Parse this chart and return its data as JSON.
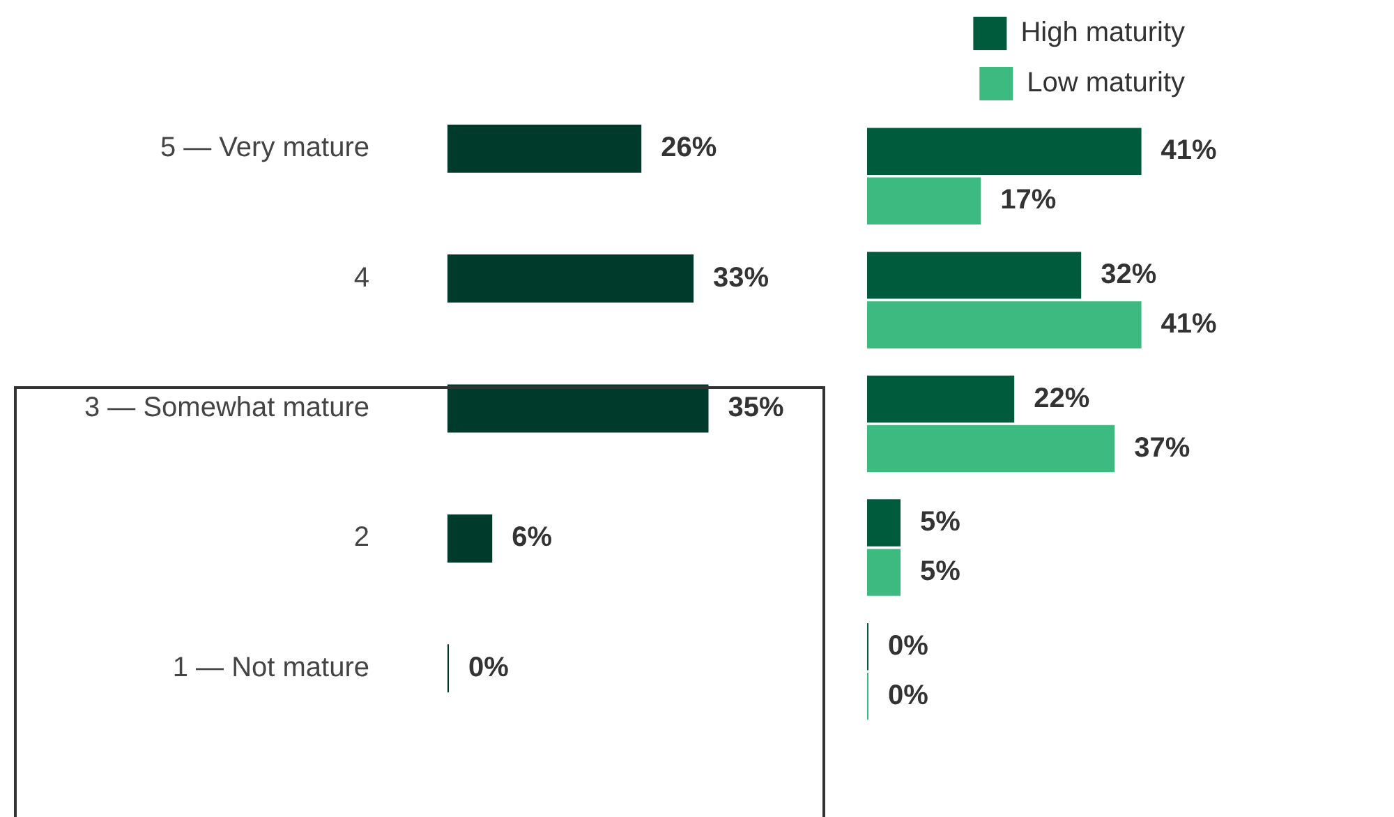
{
  "chart_data": [
    {
      "type": "bar",
      "orientation": "horizontal",
      "categories": [
        "5 — Very mature",
        "4",
        "3 — Somewhat mature",
        "2",
        "1 — Not mature"
      ],
      "values": [
        26,
        33,
        35,
        6,
        0
      ],
      "color": "#003a2b",
      "value_labels": [
        "26%",
        "33%",
        "35%",
        "6%",
        "0%"
      ]
    },
    {
      "type": "bar",
      "orientation": "horizontal",
      "categories": [
        null,
        null,
        null,
        null,
        null
      ],
      "legend": "top right",
      "series": [
        {
          "name": "High maturity",
          "color": "#005a3c",
          "values": [
            41,
            32,
            22,
            5,
            0
          ],
          "value_labels": [
            "41%",
            "32%",
            "22%",
            "5%",
            "0%"
          ]
        },
        {
          "name": "Low maturity",
          "color": "#3dba80",
          "values": [
            17,
            41,
            37,
            5,
            0
          ],
          "value_labels": [
            "17%",
            "41%",
            "37%",
            "5%",
            "0%"
          ]
        }
      ]
    }
  ]
}
